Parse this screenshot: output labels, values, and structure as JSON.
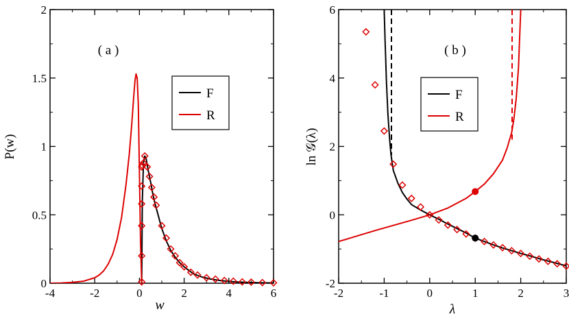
{
  "chart_data": [
    {
      "type": "line",
      "panel_label": "( a )",
      "xlabel": "w",
      "ylabel": "P(w)",
      "xlim": [
        -4,
        6
      ],
      "ylim": [
        0,
        2
      ],
      "xticks": [
        -4,
        -2,
        0,
        2,
        4,
        6
      ],
      "yticks": [
        0,
        0.5,
        1,
        1.5,
        2
      ],
      "xtick_labels": [
        "-4",
        "-2",
        "0",
        "2",
        "4",
        "6"
      ],
      "ytick_labels": [
        "0",
        "0.5",
        "1",
        "1.5",
        "2"
      ],
      "legend": {
        "placement": "upper-right",
        "entries": [
          {
            "label": "F",
            "color": "#000000"
          },
          {
            "label": "R",
            "color": "#dd0000"
          }
        ]
      },
      "series": [
        {
          "name": "F",
          "color": "#000000",
          "style": "solid",
          "x": [
            0.1,
            0.13,
            0.18,
            0.24,
            0.3,
            0.4,
            0.5,
            0.6,
            0.7,
            0.8,
            1.0,
            1.2,
            1.4,
            1.6,
            1.8,
            2.0,
            2.4,
            2.8,
            3.2,
            3.6,
            4.0,
            4.5,
            5.0,
            5.5,
            6.0
          ],
          "y": [
            0.0,
            0.6,
            0.88,
            0.93,
            0.91,
            0.82,
            0.74,
            0.65,
            0.58,
            0.52,
            0.4,
            0.31,
            0.24,
            0.19,
            0.15,
            0.12,
            0.07,
            0.045,
            0.03,
            0.02,
            0.013,
            0.008,
            0.005,
            0.003,
            0.002
          ]
        },
        {
          "name": "R",
          "color": "#dd0000",
          "style": "solid",
          "x": [
            -4.0,
            -3.5,
            -3.0,
            -2.5,
            -2.0,
            -1.8,
            -1.6,
            -1.4,
            -1.2,
            -1.0,
            -0.8,
            -0.6,
            -0.45,
            -0.35,
            -0.25,
            -0.2,
            -0.15,
            -0.1,
            -0.05,
            0.0,
            0.05,
            0.1
          ],
          "y": [
            0.0,
            0.002,
            0.006,
            0.015,
            0.04,
            0.06,
            0.09,
            0.14,
            0.21,
            0.32,
            0.48,
            0.72,
            0.95,
            1.15,
            1.38,
            1.48,
            1.53,
            1.5,
            1.3,
            0.8,
            0.3,
            0.0
          ]
        },
        {
          "name": "R markers",
          "color": "#dd0000",
          "style": "diamond",
          "x": [
            0.1,
            0.1,
            0.1,
            0.1,
            0.1,
            0.1,
            0.13,
            0.18,
            0.24,
            0.35,
            0.45,
            0.55,
            0.65,
            0.75,
            1.0,
            1.2,
            1.4,
            1.6,
            1.8,
            2.0,
            2.3,
            2.6,
            3.0,
            3.4,
            3.8,
            4.2,
            4.6,
            5.0,
            5.5,
            6.0
          ],
          "y": [
            0.01,
            0.2,
            0.42,
            0.58,
            0.71,
            0.85,
            0.86,
            0.88,
            0.93,
            0.85,
            0.78,
            0.7,
            0.63,
            0.57,
            0.42,
            0.33,
            0.25,
            0.2,
            0.15,
            0.12,
            0.08,
            0.06,
            0.04,
            0.03,
            0.02,
            0.015,
            0.01,
            0.008,
            0.005,
            0.003
          ]
        }
      ]
    },
    {
      "type": "line",
      "panel_label": "( b )",
      "xlabel": "λ",
      "ylabel": "ln 𝒢(λ)",
      "xlim": [
        -2,
        3
      ],
      "ylim": [
        -2,
        6
      ],
      "xticks": [
        -2,
        -1,
        0,
        1,
        2,
        3
      ],
      "yticks": [
        -2,
        0,
        2,
        4,
        6
      ],
      "xtick_labels": [
        "-2",
        "-1",
        "0",
        "1",
        "2",
        "3"
      ],
      "ytick_labels": [
        "-2",
        "0",
        "2",
        "4",
        "6"
      ],
      "legend": {
        "placement": "upper-center",
        "entries": [
          {
            "label": "F",
            "color": "#000000"
          },
          {
            "label": "R",
            "color": "#dd0000"
          }
        ]
      },
      "series": [
        {
          "name": "F",
          "color": "#000000",
          "style": "solid",
          "x": [
            -1.0,
            -0.98,
            -0.95,
            -0.92,
            -0.9,
            -0.88,
            -0.85,
            -0.8,
            -0.7,
            -0.6,
            -0.5,
            -0.4,
            -0.2,
            0.0,
            0.2,
            0.4,
            0.6,
            0.8,
            1.0,
            1.2,
            1.4,
            1.6,
            1.8,
            2.0,
            2.2,
            2.4,
            2.6,
            2.8,
            3.0
          ],
          "y": [
            6.0,
            5.1,
            3.9,
            3.0,
            2.6,
            2.2,
            1.75,
            1.3,
            0.93,
            0.65,
            0.46,
            0.3,
            0.14,
            0.0,
            -0.13,
            -0.27,
            -0.4,
            -0.53,
            -0.68,
            -0.78,
            -0.88,
            -0.97,
            -1.05,
            -1.13,
            -1.2,
            -1.28,
            -1.35,
            -1.42,
            -1.49
          ]
        },
        {
          "name": "F dashed",
          "color": "#000000",
          "style": "dashed",
          "x": [
            -0.84,
            -0.84
          ],
          "y": [
            6.0,
            1.75
          ]
        },
        {
          "name": "R",
          "color": "#dd0000",
          "style": "solid",
          "x": [
            -2.0,
            -1.6,
            -1.2,
            -0.8,
            -0.4,
            0.0,
            0.4,
            0.8,
            1.0,
            1.2,
            1.4,
            1.6,
            1.7,
            1.8,
            1.85,
            1.9,
            1.95,
            2.0
          ],
          "y": [
            -0.78,
            -0.62,
            -0.46,
            -0.31,
            -0.16,
            0.0,
            0.2,
            0.48,
            0.68,
            0.9,
            1.2,
            1.6,
            1.95,
            2.4,
            2.8,
            3.4,
            4.3,
            6.0
          ]
        },
        {
          "name": "R dashed",
          "color": "#dd0000",
          "style": "dashed",
          "x": [
            1.81,
            1.81
          ],
          "y": [
            6.0,
            2.2
          ]
        },
        {
          "name": "R markers",
          "color": "#dd0000",
          "style": "diamond",
          "x": [
            -1.4,
            -1.2,
            -1.0,
            -0.8,
            -0.6,
            -0.4,
            -0.2,
            0.0,
            0.2,
            0.4,
            0.6,
            0.8,
            1.0,
            1.2,
            1.4,
            1.6,
            1.8,
            2.0,
            2.2,
            2.4,
            2.6,
            2.8,
            3.0
          ],
          "y": [
            5.35,
            3.8,
            2.45,
            1.48,
            0.87,
            0.48,
            0.23,
            0.0,
            -0.15,
            -0.3,
            -0.43,
            -0.56,
            -0.68,
            -0.78,
            -0.88,
            -0.96,
            -1.05,
            -1.13,
            -1.21,
            -1.29,
            -1.36,
            -1.43,
            -1.5
          ]
        },
        {
          "name": "points",
          "color": "#000000",
          "style": "dot",
          "x": [
            1.0
          ],
          "y": [
            -0.68
          ],
          "colors": [
            "#000000"
          ]
        },
        {
          "name": "points red",
          "color": "#dd0000",
          "style": "dot",
          "x": [
            1.0
          ],
          "y": [
            0.68
          ],
          "colors": [
            "#dd0000"
          ]
        }
      ]
    }
  ]
}
